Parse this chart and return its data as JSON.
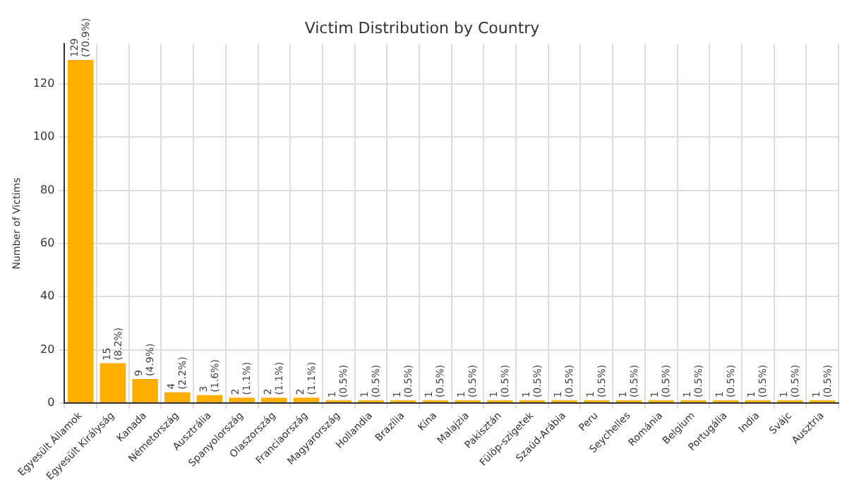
{
  "chart_data": {
    "type": "bar",
    "title": "Victim Distribution by Country",
    "ylabel": "Number of Victims",
    "categories": [
      "Egyesült Államok",
      "Egyesült Királyság",
      "Kanada",
      "Németország",
      "Ausztrália",
      "Spanyolország",
      "Olaszország",
      "Franciaország",
      "Magyarország",
      "Hollandia",
      "Brazília",
      "Kína",
      "Malajzia",
      "Pakisztán",
      "Fülöp-szigetek",
      "Szaúd-Arábia",
      "Peru",
      "Seychelles",
      "Románia",
      "Belgium",
      "Portugália",
      "India",
      "Svájc",
      "Ausztria"
    ],
    "values": [
      129,
      15,
      9,
      4,
      3,
      2,
      2,
      2,
      1,
      1,
      1,
      1,
      1,
      1,
      1,
      1,
      1,
      1,
      1,
      1,
      1,
      1,
      1,
      1
    ],
    "value_labels": [
      "129\n(70.9%)",
      "15\n(8.2%)",
      "9\n(4.9%)",
      "4\n(2.2%)",
      "3\n(1.6%)",
      "2\n(1.1%)",
      "2\n(1.1%)",
      "2\n(1.1%)",
      "1\n(0.5%)",
      "1\n(0.5%)",
      "1\n(0.5%)",
      "1\n(0.5%)",
      "1\n(0.5%)",
      "1\n(0.5%)",
      "1\n(0.5%)",
      "1\n(0.5%)",
      "1\n(0.5%)",
      "1\n(0.5%)",
      "1\n(0.5%)",
      "1\n(0.5%)",
      "1\n(0.5%)",
      "1\n(0.5%)",
      "1\n(0.5%)",
      "1\n(0.5%)"
    ],
    "color": "#ffae00",
    "ylim": [
      0,
      135
    ],
    "yticks": [
      0,
      20,
      40,
      60,
      80,
      100,
      120
    ],
    "grid": true
  }
}
